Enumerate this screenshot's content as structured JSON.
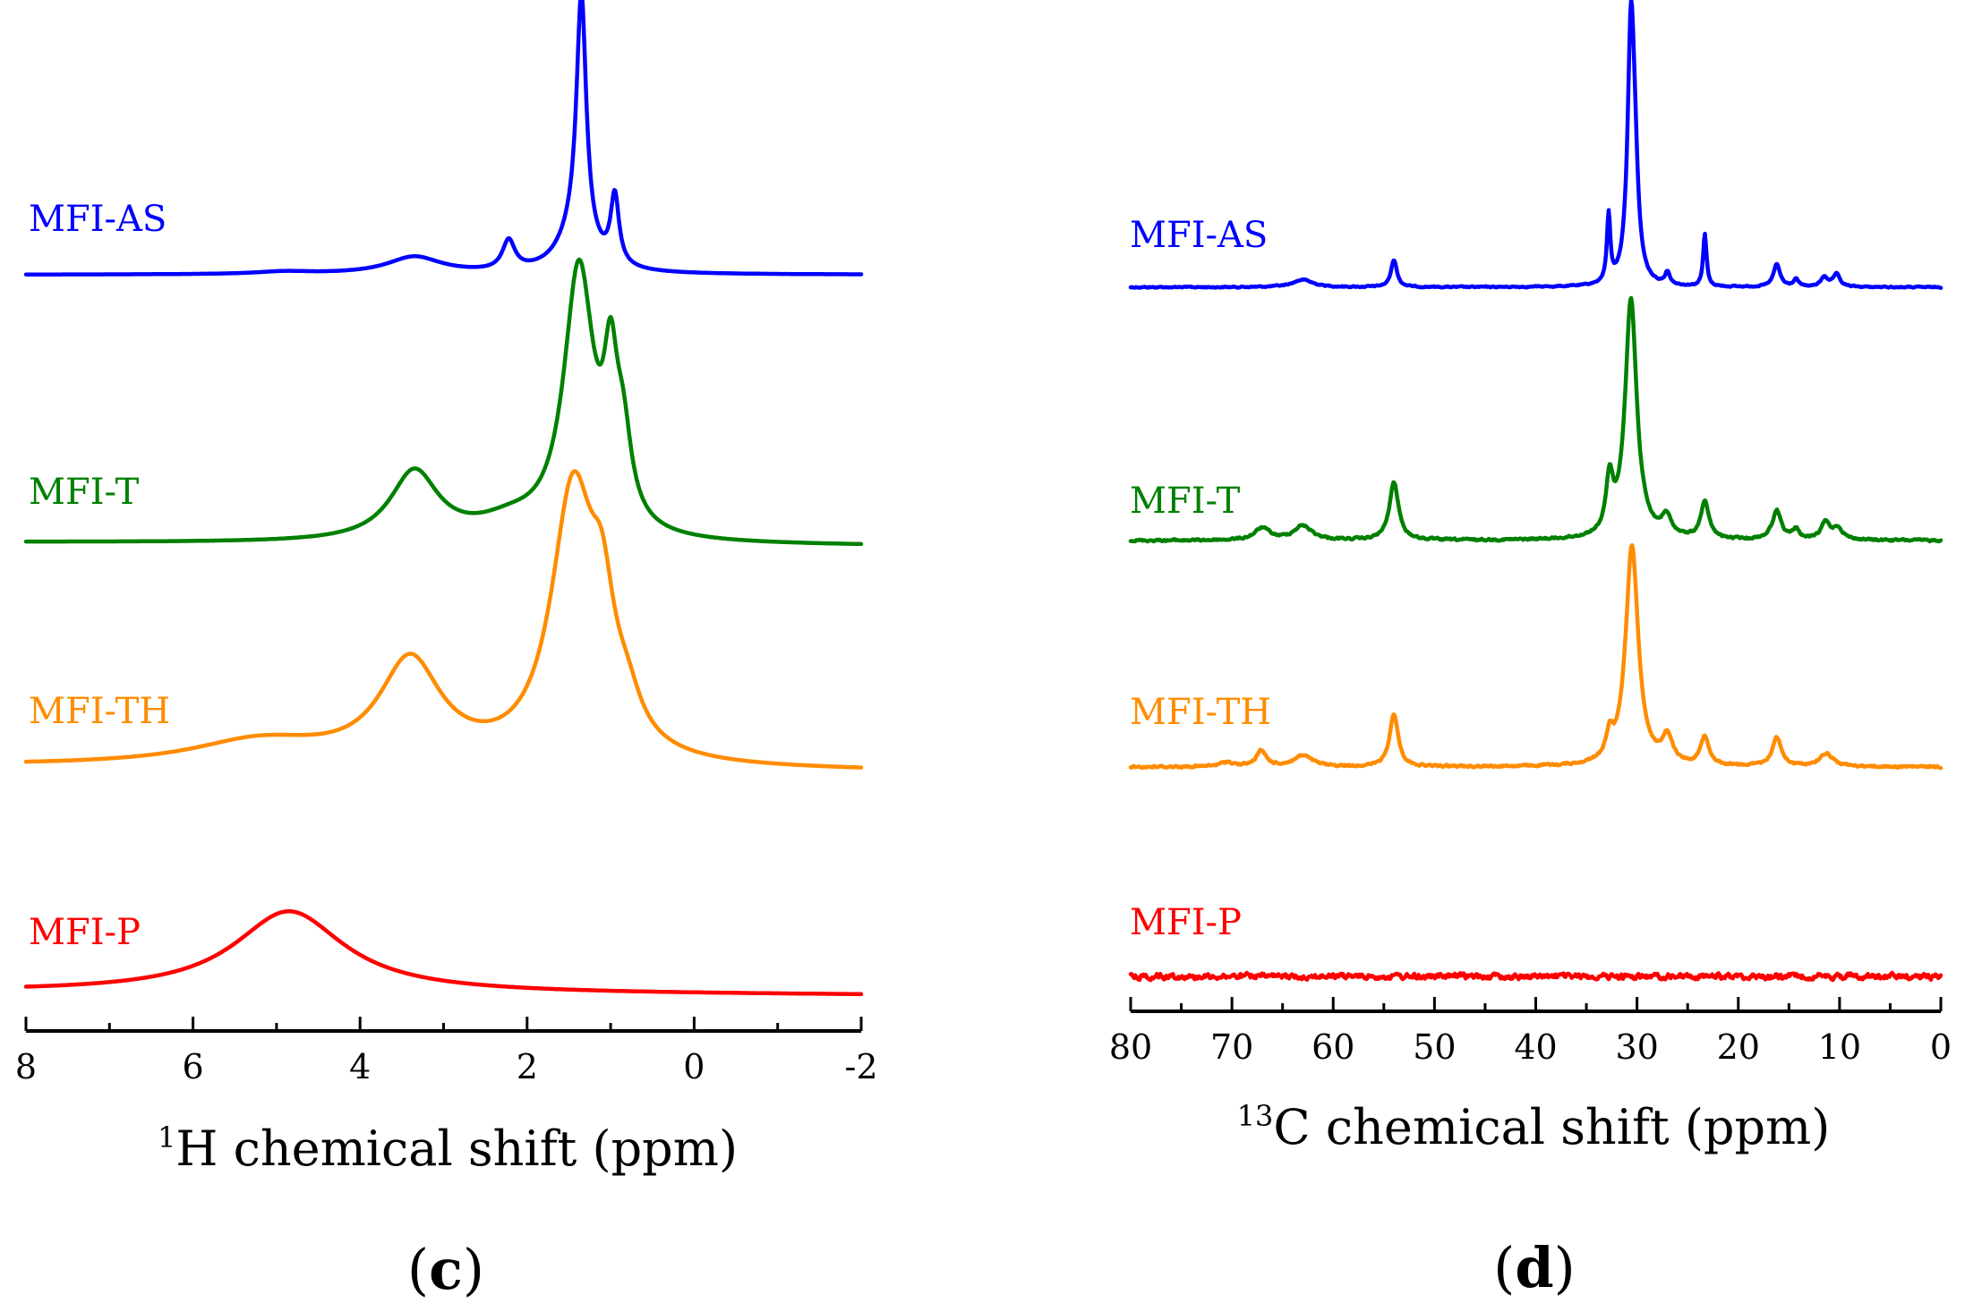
{
  "chart_data": [
    {
      "type": "line",
      "panel": "c",
      "title": "",
      "xlabel_sup": "1",
      "xlabel_main": "H chemical shift (ppm)",
      "ylabel": "",
      "xlim": [
        8,
        -2
      ],
      "x_ticks": [
        "8",
        "6",
        "4",
        "2",
        "0",
        "-2"
      ],
      "grid": false,
      "stacked_spectra": true,
      "series": [
        {
          "name": "MFI-AS",
          "color": "#0000ff",
          "baseline": 0.0,
          "peaks": [
            [
              1.35,
              1.0,
              0.07
            ],
            [
              1.42,
              0.15,
              0.25
            ],
            [
              0.95,
              0.28,
              0.06
            ],
            [
              2.22,
              0.12,
              0.09
            ],
            [
              3.35,
              0.07,
              0.4
            ],
            [
              4.9,
              0.01,
              0.4
            ]
          ]
        },
        {
          "name": "MFI-T",
          "color": "#008000",
          "baseline_start": 0.0,
          "baseline_end": 0.0,
          "peaks": [
            [
              1.38,
              1.0,
              0.22
            ],
            [
              1.0,
              0.48,
              0.1
            ],
            [
              0.85,
              0.28,
              0.12
            ],
            [
              3.35,
              0.26,
              0.35
            ],
            [
              2.2,
              0.06,
              0.5
            ]
          ]
        },
        {
          "name": "MFI-TH",
          "color": "#ff8c00",
          "peaks": [
            [
              1.45,
              1.0,
              0.32
            ],
            [
              1.1,
              0.38,
              0.18
            ],
            [
              0.8,
              0.12,
              0.2
            ],
            [
              3.4,
              0.38,
              0.45
            ],
            [
              5.2,
              0.09,
              1.0
            ]
          ]
        },
        {
          "name": "MFI-P",
          "color": "#ff0000",
          "peaks": [
            [
              4.85,
              1.0,
              0.8
            ]
          ]
        }
      ]
    },
    {
      "type": "line",
      "panel": "d",
      "title": "",
      "xlabel_sup": "13",
      "xlabel_main": "C chemical shift (ppm)",
      "ylabel": "",
      "xlim": [
        80,
        0
      ],
      "x_ticks": [
        "80",
        "70",
        "60",
        "50",
        "40",
        "30",
        "20",
        "10",
        "0"
      ],
      "grid": false,
      "stacked_spectra": true,
      "series": [
        {
          "name": "MFI-AS",
          "color": "#0000ff",
          "peaks": [
            [
              30.6,
              1.0,
              0.4
            ],
            [
              30.2,
              0.3,
              0.4
            ],
            [
              32.8,
              0.27,
              0.2
            ],
            [
              23.3,
              0.21,
              0.2
            ],
            [
              54.0,
              0.11,
              0.35
            ],
            [
              16.2,
              0.09,
              0.4
            ],
            [
              63.0,
              0.03,
              1.2
            ],
            [
              27.0,
              0.05,
              0.3
            ],
            [
              10.3,
              0.05,
              0.4
            ],
            [
              11.5,
              0.04,
              0.4
            ],
            [
              14.3,
              0.03,
              0.3
            ]
          ]
        },
        {
          "name": "MFI-T",
          "color": "#008000",
          "peaks": [
            [
              30.6,
              1.0,
              0.7
            ],
            [
              32.7,
              0.22,
              0.4
            ],
            [
              54.0,
              0.24,
              0.55
            ],
            [
              23.3,
              0.15,
              0.5
            ],
            [
              27.1,
              0.08,
              0.6
            ],
            [
              16.2,
              0.12,
              0.55
            ],
            [
              10.2,
              0.05,
              0.6
            ],
            [
              11.4,
              0.07,
              0.5
            ],
            [
              14.3,
              0.04,
              0.4
            ],
            [
              67.0,
              0.05,
              0.9
            ],
            [
              63.0,
              0.06,
              1.1
            ]
          ]
        },
        {
          "name": "MFI-TH",
          "color": "#ff8c00",
          "peaks": [
            [
              30.5,
              1.0,
              0.75
            ],
            [
              32.7,
              0.1,
              0.4
            ],
            [
              27.0,
              0.12,
              0.6
            ],
            [
              23.3,
              0.13,
              0.5
            ],
            [
              54.0,
              0.24,
              0.5
            ],
            [
              16.2,
              0.13,
              0.55
            ],
            [
              11.3,
              0.06,
              0.8
            ],
            [
              67.1,
              0.07,
              0.6
            ],
            [
              63.0,
              0.05,
              1.1
            ],
            [
              70.5,
              0.02,
              0.8
            ]
          ]
        },
        {
          "name": "MFI-P",
          "color": "#ff0000",
          "peaks": []
        }
      ]
    }
  ],
  "panels": {
    "c": {
      "open": "(",
      "letter": "c",
      "close": ")"
    },
    "d": {
      "open": "(",
      "letter": "d",
      "close": ")"
    }
  }
}
